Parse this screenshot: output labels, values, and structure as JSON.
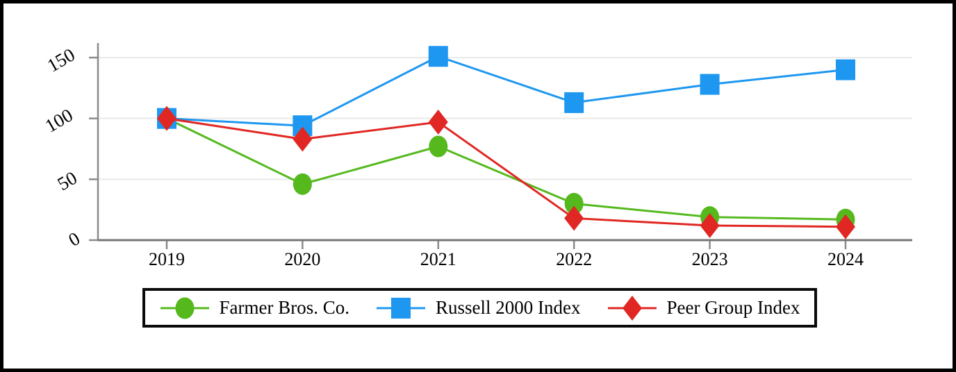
{
  "colors": {
    "farmer_green": "#55B91E",
    "russell_blue": "#1E97F0",
    "peer_red": "#E02723",
    "gridline": "#E9E9E9",
    "axis_line": "#8A8A8A",
    "baseline": "#757575",
    "frame_border": "#000000",
    "legend_border": "#0A0A0A"
  },
  "chart_data": {
    "type": "line",
    "title": "",
    "xlabel": "",
    "ylabel": "",
    "x_labels": [
      "2019",
      "2020",
      "2021",
      "2022",
      "2023",
      "2024"
    ],
    "y_ticks": [
      "150",
      "100",
      "50",
      "0"
    ],
    "y_tick_values": [
      150,
      100,
      50,
      0
    ],
    "ylim": [
      0,
      165
    ],
    "grid": "horizontal-only",
    "legend_position": "bottom-boxed",
    "series": [
      {
        "name": "Farmer Bros. Co.",
        "marker": "circle",
        "color": "#55B91E",
        "values": [
          100,
          46,
          77,
          30,
          19,
          17
        ]
      },
      {
        "name": "Russell 2000 Index",
        "marker": "square",
        "color": "#1E97F0",
        "values": [
          100,
          94,
          151,
          113,
          128,
          140
        ]
      },
      {
        "name": "Peer Group Index",
        "marker": "diamond",
        "color": "#E02723",
        "values": [
          100,
          83,
          97,
          18,
          12,
          11
        ]
      }
    ]
  }
}
